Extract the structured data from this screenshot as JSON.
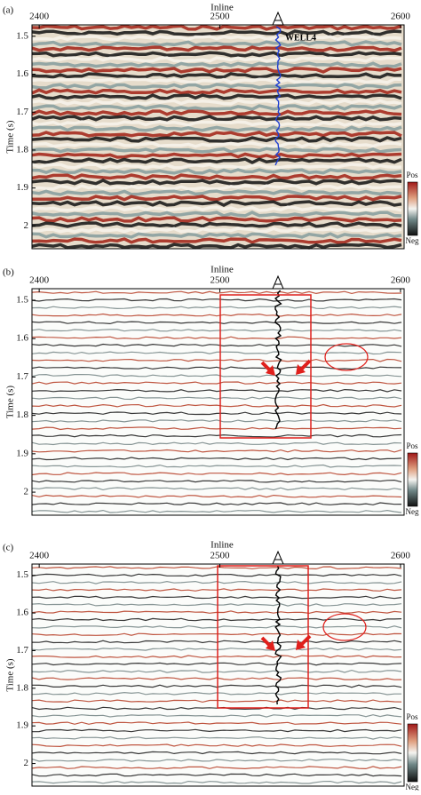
{
  "panels": [
    {
      "label": "(a)",
      "x_title": "Inline",
      "y_title": "Time (s)",
      "xticks": [
        2400,
        2500,
        2600
      ],
      "yticks": [
        1.5,
        1.6,
        1.7,
        1.8,
        1.9,
        2.0
      ],
      "xlim": [
        2396,
        2602
      ],
      "ylim": [
        1.47,
        2.06
      ],
      "colorbar_top": "Pos",
      "colorbar_bottom": "Neg",
      "well_label": "WELL4"
    },
    {
      "label": "(b)",
      "x_title": "Inline",
      "y_title": "Time (s)",
      "xticks": [
        2400,
        2500,
        2600
      ],
      "yticks": [
        1.5,
        1.6,
        1.7,
        1.8,
        1.9,
        2.0
      ],
      "xlim": [
        2396,
        2602
      ],
      "ylim": [
        1.47,
        2.06
      ],
      "colorbar_top": "Pos",
      "colorbar_bottom": "Neg"
    },
    {
      "label": "(c)",
      "x_title": "Inline",
      "y_title": "Time (s)",
      "xticks": [
        2400,
        2500,
        2600
      ],
      "yticks": [
        1.5,
        1.6,
        1.7,
        1.8,
        1.9,
        2.0
      ],
      "xlim": [
        2396,
        2602
      ],
      "ylim": [
        1.47,
        2.06
      ],
      "colorbar_top": "Pos",
      "colorbar_bottom": "Neg"
    }
  ]
}
